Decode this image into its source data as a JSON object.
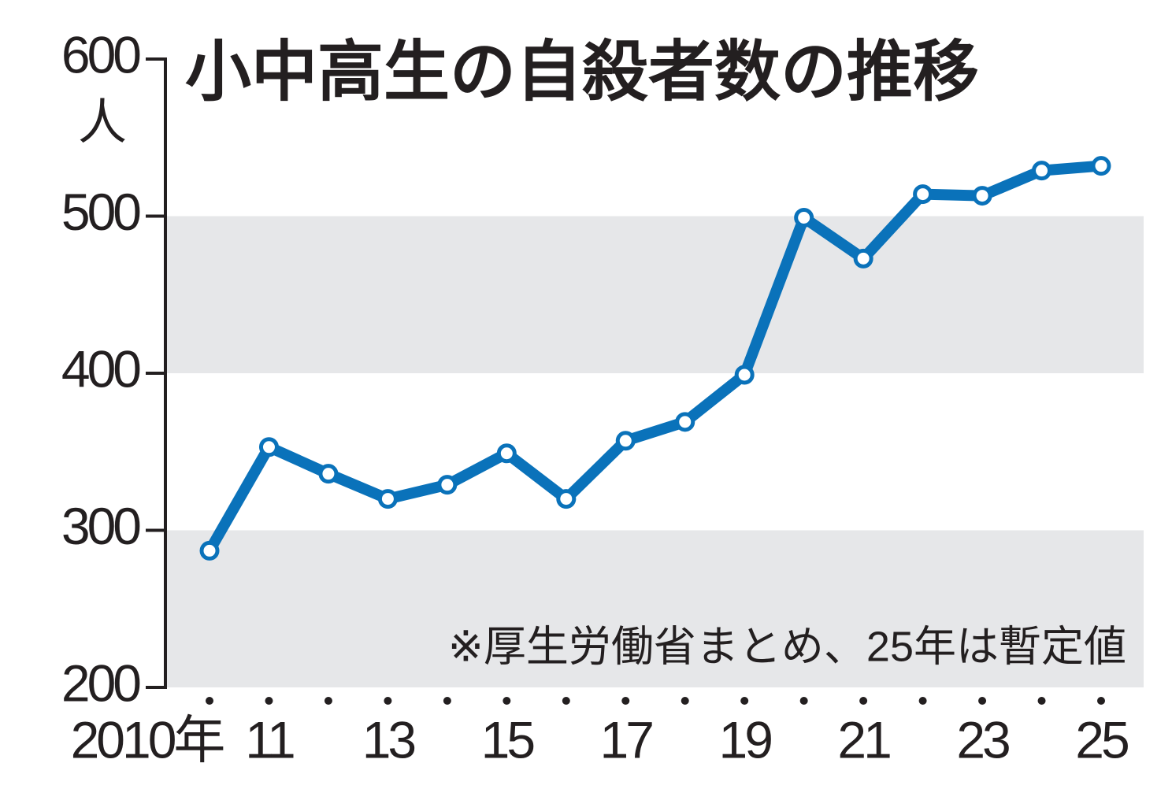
{
  "chart_data": {
    "type": "line",
    "title": "小中高生の自殺者数の推移",
    "y_label": "人",
    "note": "※厚生労働省まとめ、25年は暫定値",
    "categories": [
      "2010年",
      "11",
      null,
      "13",
      null,
      "15",
      null,
      "17",
      null,
      "19",
      null,
      "21",
      null,
      "23",
      null,
      "25"
    ],
    "series": [
      {
        "color": "#0a72ba",
        "values": [
          287,
          353,
          336,
          320,
          329,
          349,
          320,
          357,
          369,
          399,
          499,
          473,
          514,
          513,
          529,
          532
        ]
      }
    ],
    "ylim": [
      200,
      600
    ],
    "yticks": [
      200,
      300,
      400,
      500,
      600
    ],
    "alternating_bands": true,
    "band_color": "#e6e7e9"
  }
}
